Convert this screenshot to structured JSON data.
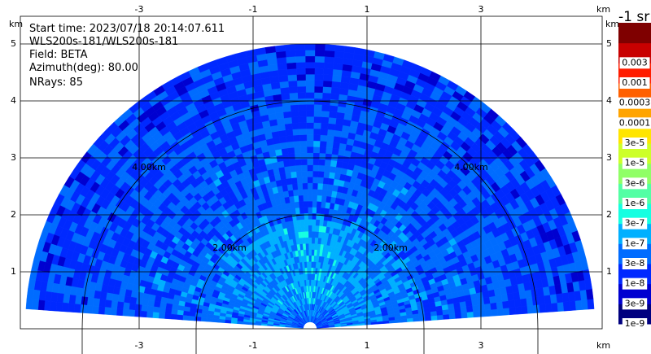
{
  "info": {
    "start_time": "Start time: 2023/07/18 20:14:07.611",
    "instrument": "WLS200s-181/WLS200s-181",
    "field": "Field: BETA",
    "azimuth": "Azimuth(deg): 80.00",
    "nrays": "NRays: 85"
  },
  "chart_data": {
    "type": "heatmap",
    "projection": "RHI sector (half-disc)",
    "x_unit": "km",
    "y_unit": "km",
    "xlim": [
      -5.0,
      5.0
    ],
    "ylim": [
      0.0,
      5.6
    ],
    "x_ticks": [
      -3,
      -1,
      1,
      3
    ],
    "y_ticks": [
      1,
      2,
      3,
      4,
      5
    ],
    "x_tick_labels": [
      "-3",
      "-1",
      "1",
      "3"
    ],
    "y_tick_labels": [
      "1",
      "2",
      "3",
      "4",
      "5"
    ],
    "grid": true,
    "max_range_km": 5.0,
    "min_elevation_deg": 4,
    "range_rings": [
      {
        "radius_km": 2.0,
        "label": "2.00km"
      },
      {
        "radius_km": 4.0,
        "label": "4.00km"
      }
    ],
    "colorbar": {
      "unit_label": "-1 sr",
      "levels": [
        "1e-9",
        "3e-9",
        "1e-8",
        "3e-8",
        "1e-7",
        "3e-7",
        "1e-6",
        "3e-6",
        "1e-5",
        "3e-5",
        "0.0001",
        "0.0003",
        "0.001",
        "0.003"
      ],
      "colors": [
        "#00007f",
        "#0000d0",
        "#0029ff",
        "#006cff",
        "#00b0ff",
        "#16ffe1",
        "#53ffa4",
        "#90ff66",
        "#cdff29",
        "#ffe500",
        "#ffa400",
        "#ff6000",
        "#ff1c00",
        "#c80000",
        "#7f0000"
      ]
    }
  }
}
